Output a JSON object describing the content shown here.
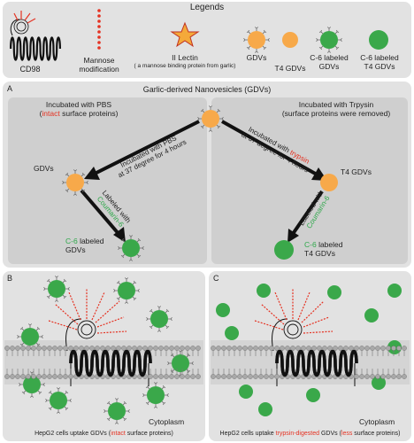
{
  "legends": {
    "title": "Legends",
    "cd98": "CD98",
    "mannose_1": "Mannose",
    "mannose_2": "modification",
    "lectin": "II Lectin",
    "lectin_note": "( a mannose binding protein from garlic)",
    "gdvs": "GDVs",
    "t4_gdvs": "T4 GDVs",
    "c6_gdvs_1": "C-6 labeled",
    "c6_gdvs_2": "GDVs",
    "c6_t4_1": "C-6 labeled",
    "c6_t4_2": "T4 GDVs"
  },
  "panel_a": {
    "letter": "A",
    "title": "Garlic-derived Nanovesicles (GDVs)",
    "left_head_1": "Incubated with PBS",
    "left_head_2a": "(",
    "left_head_2b": "intact",
    "left_head_2c": " surface proteins)",
    "right_head_1": "Incubated with Trpysin",
    "right_head_2": "(surface proteins were removed)",
    "arrow_left_1": "Incubated with PBS",
    "arrow_left_2": "at 37 degree for 4 hours",
    "arrow_right_1a": "Incubated with ",
    "arrow_right_1b": "trypsin",
    "arrow_right_2": "at 37 degree for 4 hours",
    "gdvs_label": "GDVs",
    "t4_label": "T4 GDVs",
    "labeled_with": "Labeled with",
    "coumarin": "Coumarin-6",
    "c6_label_a": "C-6",
    "c6_label_b": " labeled",
    "c6_gdvs": "GDVs",
    "c6_t4_a": "C-6",
    "c6_t4_b": "  labeled",
    "c6_t4_c": "T4 GDVs"
  },
  "panel_b": {
    "letter": "B",
    "cytoplasm": "Cytoplasm",
    "caption_a": "HepG2 cells uptake GDVs (",
    "caption_b": "intact",
    "caption_c": " surface proteins)"
  },
  "panel_c": {
    "letter": "C",
    "cytoplasm": "Cytoplasm",
    "caption_a": "HepG2 cells uptake ",
    "caption_b": "trypsin-digested",
    "caption_c": " GDVs (",
    "caption_d": "less",
    "caption_e": " surface proteins)"
  },
  "colors": {
    "red": "#e53222",
    "orange": "#f7a94a",
    "green": "#3aa84a",
    "black_arrow": "#111111"
  }
}
